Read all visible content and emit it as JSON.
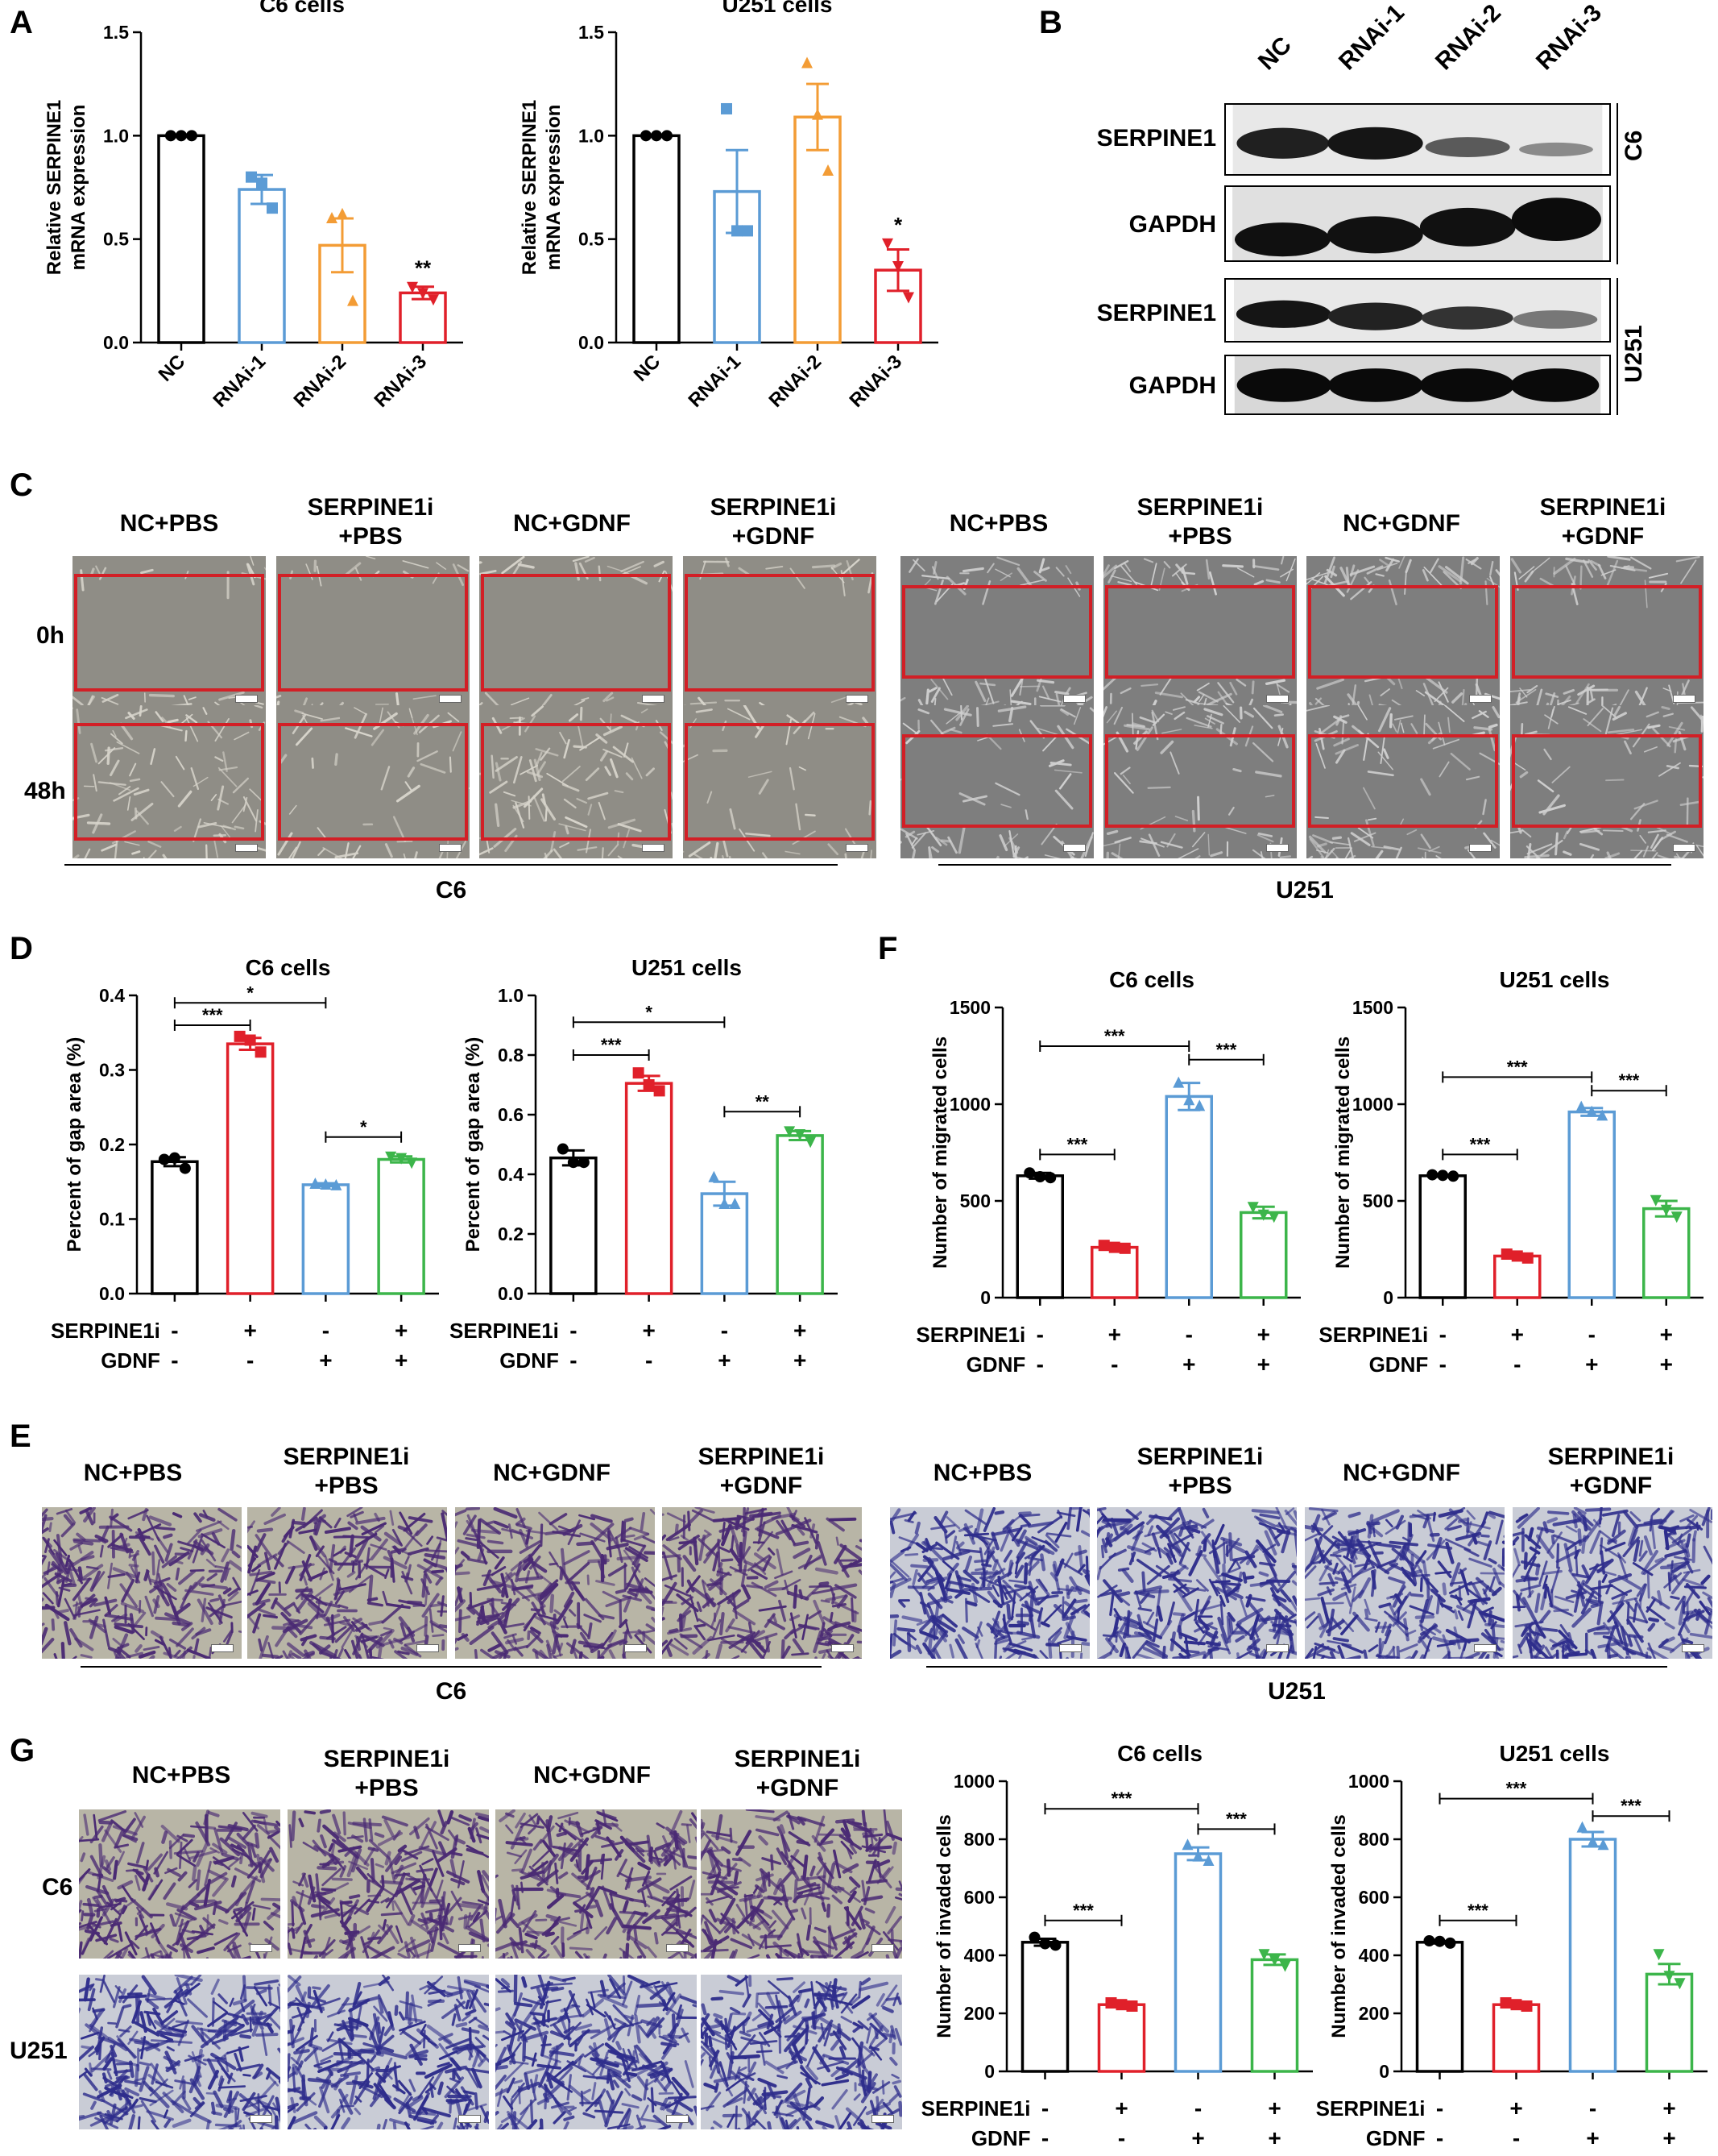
{
  "panels": {
    "A": "A",
    "B": "B",
    "C": "C",
    "D": "D",
    "E": "E",
    "F": "F",
    "G": "G"
  },
  "colors": {
    "NC": "#000000",
    "RNAi-1": "#5b9bd5",
    "RNAi-2": "#f39c35",
    "RNAi-3": "#e0202a",
    "SERPINE1i+PBS": "#e0202a",
    "NC+GDNF": "#5b9bd5",
    "SERPINE1i+GDNF": "#3cb54a",
    "box_red": "#d21f26"
  },
  "conditions": [
    "NC+PBS",
    "SERPINE1i\n+PBS",
    "NC+GDNF",
    "SERPINE1i\n+GDNF"
  ],
  "panelB": {
    "lanes": [
      "NC",
      "RNAi-1",
      "RNAi-2",
      "RNAi-3"
    ],
    "rows": [
      "SERPINE1",
      "GAPDH",
      "SERPINE1",
      "GAPDH"
    ],
    "groups": [
      "C6",
      "U251"
    ]
  },
  "panelC": {
    "timepoints": [
      "0h",
      "48h"
    ],
    "groups": [
      "C6",
      "U251"
    ]
  },
  "panelE": {
    "groups": [
      "C6",
      "U251"
    ]
  },
  "panelG": {
    "rows": [
      "C6",
      "U251"
    ]
  },
  "treatment": {
    "row1_label": "SERPINE1i",
    "row2_label": "GDNF",
    "row1": [
      "-",
      "+",
      "-",
      "+"
    ],
    "row2": [
      "-",
      "-",
      "+",
      "+"
    ]
  },
  "chart_data": [
    {
      "id": "A_C6",
      "type": "bar",
      "title": "C6 cells",
      "ylabel": "Relative SERPINE1\nmRNA expression",
      "categories": [
        "NC",
        "RNAi-1",
        "RNAi-2",
        "RNAi-3"
      ],
      "values": [
        1.0,
        0.74,
        0.47,
        0.24
      ],
      "errors": [
        0.0,
        0.07,
        0.13,
        0.03
      ],
      "points": [
        [
          1.0,
          1.0,
          1.0
        ],
        [
          0.8,
          0.77,
          0.65
        ],
        [
          0.6,
          0.62,
          0.2
        ],
        [
          0.27,
          0.24,
          0.21
        ]
      ],
      "markers": [
        "circle",
        "square",
        "triangle",
        "invtriangle"
      ],
      "ylim": [
        0,
        1.5
      ],
      "yticks": [
        "0.0",
        "0.5",
        "1.0",
        "1.5"
      ],
      "sig": [
        {
          "bar": 3,
          "text": "**"
        }
      ]
    },
    {
      "id": "A_U251",
      "type": "bar",
      "title": "U251 cells",
      "ylabel": "Relative SERPINE1\nmRNA expression",
      "categories": [
        "NC",
        "RNAi-1",
        "RNAi-2",
        "RNAi-3"
      ],
      "values": [
        1.0,
        0.73,
        1.09,
        0.35
      ],
      "errors": [
        0.0,
        0.2,
        0.16,
        0.1
      ],
      "points": [
        [
          1.0,
          1.0,
          1.0
        ],
        [
          1.13,
          0.54,
          0.54
        ],
        [
          1.35,
          1.1,
          0.83
        ],
        [
          0.48,
          0.37,
          0.22
        ]
      ],
      "markers": [
        "circle",
        "square",
        "triangle",
        "invtriangle"
      ],
      "ylim": [
        0,
        1.5
      ],
      "yticks": [
        "0.0",
        "0.5",
        "1.0",
        "1.5"
      ],
      "sig": [
        {
          "bar": 3,
          "text": "*"
        }
      ]
    },
    {
      "id": "D_C6",
      "type": "bar",
      "title": "C6 cells",
      "ylabel": "Percent of gap area (%)",
      "categories": [
        "1",
        "2",
        "3",
        "4"
      ],
      "values": [
        0.177,
        0.335,
        0.146,
        0.18
      ],
      "errors": [
        0.006,
        0.008,
        0.002,
        0.004
      ],
      "points": [
        [
          0.18,
          0.182,
          0.168
        ],
        [
          0.345,
          0.34,
          0.324
        ],
        [
          0.147,
          0.146,
          0.145
        ],
        [
          0.184,
          0.182,
          0.176
        ]
      ],
      "markers": [
        "circle",
        "square",
        "triangle",
        "invtriangle"
      ],
      "ylim": [
        0,
        0.4
      ],
      "yticks": [
        "0.0",
        "0.1",
        "0.2",
        "0.3",
        "0.4"
      ],
      "brackets": [
        {
          "from": 0,
          "to": 2,
          "level": 0.39,
          "text": "*"
        },
        {
          "from": 0,
          "to": 1,
          "level": 0.36,
          "text": "***"
        },
        {
          "from": 2,
          "to": 3,
          "level": 0.21,
          "text": "*"
        }
      ]
    },
    {
      "id": "D_U251",
      "type": "bar",
      "title": "U251 cells",
      "ylabel": "Percent of gap area (%)",
      "categories": [
        "1",
        "2",
        "3",
        "4"
      ],
      "values": [
        0.455,
        0.705,
        0.335,
        0.53
      ],
      "errors": [
        0.025,
        0.025,
        0.04,
        0.015
      ],
      "points": [
        [
          0.485,
          0.44,
          0.44
        ],
        [
          0.74,
          0.7,
          0.68
        ],
        [
          0.39,
          0.3,
          0.3
        ],
        [
          0.545,
          0.535,
          0.51
        ]
      ],
      "markers": [
        "circle",
        "square",
        "triangle",
        "invtriangle"
      ],
      "ylim": [
        0,
        1.0
      ],
      "yticks": [
        "0.0",
        "0.2",
        "0.4",
        "0.6",
        "0.8",
        "1.0"
      ],
      "brackets": [
        {
          "from": 0,
          "to": 2,
          "level": 0.91,
          "text": "*"
        },
        {
          "from": 0,
          "to": 1,
          "level": 0.8,
          "text": "***"
        },
        {
          "from": 2,
          "to": 3,
          "level": 0.61,
          "text": "**"
        }
      ]
    },
    {
      "id": "F_C6",
      "type": "bar",
      "title": "C6 cells",
      "ylabel": "Number of migrated cells",
      "categories": [
        "1",
        "2",
        "3",
        "4"
      ],
      "values": [
        630,
        260,
        1040,
        440
      ],
      "errors": [
        15,
        10,
        70,
        30
      ],
      "points": [
        [
          645,
          625,
          620
        ],
        [
          270,
          260,
          255
        ],
        [
          1110,
          1020,
          990
        ],
        [
          470,
          430,
          420
        ]
      ],
      "markers": [
        "circle",
        "square",
        "triangle",
        "invtriangle"
      ],
      "ylim": [
        0,
        1500
      ],
      "yticks": [
        "0",
        "500",
        "1000",
        "1500"
      ],
      "brackets": [
        {
          "from": 0,
          "to": 2,
          "level": 1300,
          "text": "***"
        },
        {
          "from": 2,
          "to": 3,
          "level": 1230,
          "text": "***"
        },
        {
          "from": 0,
          "to": 1,
          "level": 740,
          "text": "***"
        }
      ]
    },
    {
      "id": "F_U251",
      "type": "bar",
      "title": "U251 cells",
      "ylabel": "Number of migrated cells",
      "categories": [
        "1",
        "2",
        "3",
        "4"
      ],
      "values": [
        630,
        215,
        960,
        460
      ],
      "errors": [
        5,
        10,
        20,
        40
      ],
      "points": [
        [
          635,
          632,
          628
        ],
        [
          225,
          215,
          205
        ],
        [
          985,
          960,
          940
        ],
        [
          505,
          455,
          420
        ]
      ],
      "markers": [
        "circle",
        "square",
        "triangle",
        "invtriangle"
      ],
      "ylim": [
        0,
        1500
      ],
      "yticks": [
        "0",
        "500",
        "1000",
        "1500"
      ],
      "brackets": [
        {
          "from": 0,
          "to": 2,
          "level": 1140,
          "text": "***"
        },
        {
          "from": 2,
          "to": 3,
          "level": 1070,
          "text": "***"
        },
        {
          "from": 0,
          "to": 1,
          "level": 740,
          "text": "***"
        }
      ]
    },
    {
      "id": "G_C6",
      "type": "bar",
      "title": "C6 cells",
      "ylabel": "Number of invaded cells",
      "categories": [
        "1",
        "2",
        "3",
        "4"
      ],
      "values": [
        445,
        230,
        750,
        385
      ],
      "errors": [
        12,
        6,
        22,
        18
      ],
      "points": [
        [
          462,
          440,
          435
        ],
        [
          236,
          230,
          225
        ],
        [
          780,
          740,
          725
        ],
        [
          405,
          385,
          365
        ]
      ],
      "markers": [
        "circle",
        "square",
        "triangle",
        "invtriangle"
      ],
      "ylim": [
        0,
        1000
      ],
      "yticks": [
        "0",
        "200",
        "400",
        "600",
        "800",
        "1000"
      ],
      "brackets": [
        {
          "from": 0,
          "to": 2,
          "level": 905,
          "text": "***"
        },
        {
          "from": 2,
          "to": 3,
          "level": 835,
          "text": "***"
        },
        {
          "from": 0,
          "to": 1,
          "level": 520,
          "text": "***"
        }
      ]
    },
    {
      "id": "G_U251",
      "type": "bar",
      "title": "U251 cells",
      "ylabel": "Number of invaded cells",
      "categories": [
        "1",
        "2",
        "3",
        "4"
      ],
      "values": [
        445,
        230,
        800,
        335
      ],
      "errors": [
        4,
        6,
        25,
        35
      ],
      "points": [
        [
          450,
          448,
          442
        ],
        [
          236,
          230,
          225
        ],
        [
          840,
          790,
          780
        ],
        [
          405,
          330,
          305
        ]
      ],
      "markers": [
        "circle",
        "square",
        "triangle",
        "invtriangle"
      ],
      "ylim": [
        0,
        1000
      ],
      "yticks": [
        "0",
        "200",
        "400",
        "600",
        "800",
        "1000"
      ],
      "brackets": [
        {
          "from": 0,
          "to": 2,
          "level": 940,
          "text": "***"
        },
        {
          "from": 2,
          "to": 3,
          "level": 880,
          "text": "***"
        },
        {
          "from": 0,
          "to": 1,
          "level": 520,
          "text": "***"
        }
      ]
    }
  ]
}
